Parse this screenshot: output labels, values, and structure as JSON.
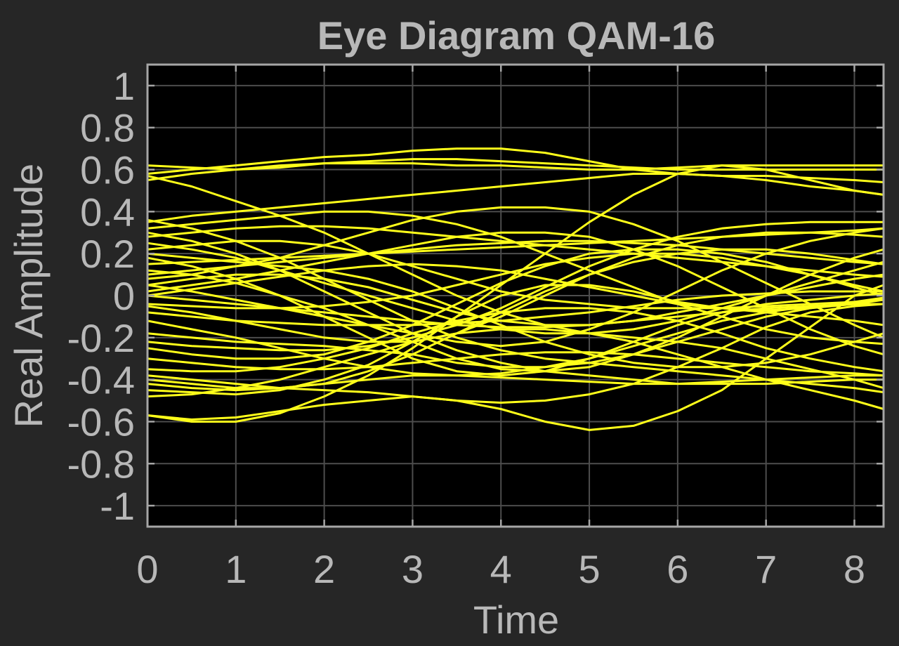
{
  "chart_data": {
    "type": "line",
    "title": "Eye Diagram QAM-16",
    "xlabel": "Time",
    "ylabel": "Real Amplitude",
    "xlim": [
      0,
      8.33
    ],
    "ylim": [
      -1.1,
      1.1
    ],
    "xticks": [
      0,
      1,
      2,
      3,
      4,
      5,
      6,
      7,
      8
    ],
    "xtick_labels": [
      "0",
      "1",
      "2",
      "3",
      "4",
      "5",
      "6",
      "7",
      "8"
    ],
    "yticks": [
      1,
      0.8,
      0.6,
      0.4,
      0.2,
      0,
      -0.2,
      -0.4,
      -0.6,
      -0.8,
      -1
    ],
    "ytick_labels": [
      "1",
      "0.8",
      "0.6",
      "0.4",
      "0.2",
      "0",
      "-0.2",
      "-0.4",
      "-0.6",
      "-0.8",
      "-1"
    ],
    "grid": true,
    "background": "#000000",
    "figure_background": "#262626",
    "trace_color": "#ffff1a",
    "text_color": "#b8b8b8",
    "x": [
      0,
      0.5,
      1,
      1.5,
      2,
      2.5,
      3,
      3.5,
      4,
      4.5,
      5,
      5.5,
      6,
      6.5,
      7,
      7.5,
      8,
      8.33
    ],
    "series": [
      {
        "values": [
          0.62,
          0.61,
          0.6,
          0.61,
          0.63,
          0.64,
          0.65,
          0.65,
          0.64,
          0.63,
          0.62,
          0.61,
          0.6,
          0.6,
          0.6,
          0.6,
          0.6,
          0.6
        ]
      },
      {
        "values": [
          0.58,
          0.6,
          0.62,
          0.64,
          0.66,
          0.67,
          0.69,
          0.7,
          0.7,
          0.68,
          0.64,
          0.6,
          0.58,
          0.57,
          0.57,
          0.56,
          0.55,
          0.54
        ]
      },
      {
        "values": [
          0.55,
          0.58,
          0.6,
          0.62,
          0.63,
          0.63,
          0.63,
          0.62,
          0.62,
          0.61,
          0.6,
          0.6,
          0.61,
          0.62,
          0.62,
          0.62,
          0.62,
          0.62
        ]
      },
      {
        "values": [
          0.57,
          0.52,
          0.45,
          0.38,
          0.3,
          0.2,
          0.1,
          0.0,
          -0.08,
          -0.14,
          -0.18,
          -0.2,
          -0.22,
          -0.25,
          -0.3,
          -0.35,
          -0.4,
          -0.44
        ]
      },
      {
        "values": [
          -0.57,
          -0.6,
          -0.6,
          -0.56,
          -0.48,
          -0.38,
          -0.25,
          -0.1,
          0.05,
          0.2,
          0.35,
          0.48,
          0.58,
          0.62,
          0.6,
          0.55,
          0.5,
          0.48
        ]
      },
      {
        "values": [
          -0.57,
          -0.59,
          -0.58,
          -0.55,
          -0.52,
          -0.5,
          -0.48,
          -0.5,
          -0.54,
          -0.6,
          -0.64,
          -0.62,
          -0.55,
          -0.45,
          -0.3,
          -0.15,
          0.0,
          0.05
        ]
      },
      {
        "values": [
          -0.45,
          -0.46,
          -0.47,
          -0.45,
          -0.4,
          -0.33,
          -0.22,
          -0.1,
          0.0,
          0.05,
          0.05,
          0.02,
          -0.03,
          -0.06,
          -0.08,
          -0.1,
          -0.12,
          -0.14
        ]
      },
      {
        "values": [
          -0.42,
          -0.44,
          -0.45,
          -0.44,
          -0.42,
          -0.4,
          -0.38,
          -0.38,
          -0.39,
          -0.4,
          -0.41,
          -0.42,
          -0.42,
          -0.41,
          -0.4,
          -0.39,
          -0.38,
          -0.38
        ]
      },
      {
        "values": [
          -0.38,
          -0.4,
          -0.42,
          -0.44,
          -0.45,
          -0.46,
          -0.48,
          -0.5,
          -0.51,
          -0.5,
          -0.47,
          -0.42,
          -0.34,
          -0.25,
          -0.15,
          -0.08,
          -0.05,
          -0.04
        ]
      },
      {
        "values": [
          -0.35,
          -0.36,
          -0.36,
          -0.34,
          -0.3,
          -0.25,
          -0.18,
          -0.12,
          -0.08,
          -0.06,
          -0.06,
          -0.08,
          -0.12,
          -0.18,
          -0.25,
          -0.3,
          -0.34,
          -0.36
        ]
      },
      {
        "values": [
          -0.3,
          -0.32,
          -0.34,
          -0.35,
          -0.35,
          -0.34,
          -0.32,
          -0.3,
          -0.28,
          -0.27,
          -0.27,
          -0.28,
          -0.3,
          -0.32,
          -0.34,
          -0.36,
          -0.37,
          -0.38
        ]
      },
      {
        "values": [
          -0.22,
          -0.24,
          -0.25,
          -0.26,
          -0.26,
          -0.24,
          -0.2,
          -0.14,
          -0.06,
          0.04,
          0.14,
          0.22,
          0.28,
          0.32,
          0.34,
          0.35,
          0.35,
          0.35
        ]
      },
      {
        "values": [
          -0.18,
          -0.2,
          -0.22,
          -0.23,
          -0.24,
          -0.26,
          -0.28,
          -0.32,
          -0.34,
          -0.34,
          -0.32,
          -0.28,
          -0.22,
          -0.16,
          -0.1,
          -0.06,
          -0.03,
          -0.01
        ]
      },
      {
        "values": [
          -0.12,
          -0.16,
          -0.2,
          -0.25,
          -0.3,
          -0.34,
          -0.37,
          -0.38,
          -0.37,
          -0.34,
          -0.3,
          -0.24,
          -0.18,
          -0.12,
          -0.08,
          -0.05,
          -0.04,
          -0.04
        ]
      },
      {
        "values": [
          -0.08,
          -0.1,
          -0.12,
          -0.13,
          -0.14,
          -0.14,
          -0.14,
          -0.13,
          -0.12,
          -0.1,
          -0.08,
          -0.05,
          -0.02,
          0.0,
          0.01,
          0.02,
          0.02,
          0.02
        ]
      },
      {
        "values": [
          -0.04,
          -0.05,
          -0.06,
          -0.06,
          -0.05,
          -0.03,
          0.0,
          0.05,
          0.1,
          0.15,
          0.18,
          0.2,
          0.2,
          0.18,
          0.14,
          0.1,
          0.05,
          0.02
        ]
      },
      {
        "values": [
          0.0,
          -0.02,
          -0.04,
          -0.06,
          -0.08,
          -0.1,
          -0.12,
          -0.14,
          -0.15,
          -0.15,
          -0.14,
          -0.12,
          -0.1,
          -0.08,
          -0.06,
          -0.05,
          -0.04,
          -0.04
        ]
      },
      {
        "values": [
          0.02,
          0.05,
          0.08,
          0.12,
          0.16,
          0.2,
          0.24,
          0.28,
          0.3,
          0.3,
          0.28,
          0.22,
          0.14,
          0.04,
          -0.06,
          -0.16,
          -0.24,
          -0.28
        ]
      },
      {
        "values": [
          0.05,
          0.08,
          0.1,
          0.1,
          0.08,
          0.04,
          -0.02,
          -0.08,
          -0.12,
          -0.14,
          -0.14,
          -0.12,
          -0.08,
          -0.04,
          0.0,
          0.04,
          0.08,
          0.1
        ]
      },
      {
        "values": [
          0.08,
          0.1,
          0.14,
          0.18,
          0.24,
          0.3,
          0.36,
          0.4,
          0.42,
          0.42,
          0.4,
          0.34,
          0.26,
          0.16,
          0.06,
          -0.04,
          -0.14,
          -0.2
        ]
      },
      {
        "values": [
          0.12,
          0.1,
          0.06,
          0.0,
          -0.06,
          -0.14,
          -0.22,
          -0.3,
          -0.35,
          -0.36,
          -0.34,
          -0.28,
          -0.2,
          -0.1,
          0.0,
          0.1,
          0.18,
          0.22
        ]
      },
      {
        "values": [
          0.15,
          0.16,
          0.17,
          0.18,
          0.19,
          0.2,
          0.21,
          0.22,
          0.23,
          0.24,
          0.25,
          0.26,
          0.27,
          0.28,
          0.29,
          0.3,
          0.31,
          0.32
        ]
      },
      {
        "values": [
          0.18,
          0.14,
          0.08,
          0.0,
          -0.1,
          -0.2,
          -0.3,
          -0.36,
          -0.38,
          -0.36,
          -0.3,
          -0.22,
          -0.14,
          -0.08,
          -0.04,
          -0.02,
          0.0,
          0.01
        ]
      },
      {
        "values": [
          0.22,
          0.24,
          0.26,
          0.26,
          0.24,
          0.2,
          0.14,
          0.08,
          0.02,
          -0.02,
          -0.04,
          -0.06,
          -0.06,
          -0.06,
          -0.05,
          -0.04,
          -0.03,
          -0.02
        ]
      },
      {
        "values": [
          0.25,
          0.22,
          0.18,
          0.12,
          0.06,
          0.0,
          -0.06,
          -0.12,
          -0.16,
          -0.18,
          -0.18,
          -0.16,
          -0.12,
          -0.06,
          0.0,
          0.06,
          0.12,
          0.16
        ]
      },
      {
        "values": [
          0.28,
          0.3,
          0.32,
          0.33,
          0.33,
          0.32,
          0.3,
          0.28,
          0.26,
          0.24,
          0.22,
          0.2,
          0.18,
          0.16,
          0.14,
          0.12,
          0.1,
          0.09
        ]
      },
      {
        "values": [
          0.3,
          0.26,
          0.2,
          0.12,
          0.02,
          -0.08,
          -0.18,
          -0.26,
          -0.32,
          -0.36,
          -0.38,
          -0.4,
          -0.42,
          -0.42,
          -0.42,
          -0.41,
          -0.4,
          -0.4
        ]
      },
      {
        "values": [
          0.32,
          0.34,
          0.36,
          0.38,
          0.4,
          0.4,
          0.38,
          0.34,
          0.28,
          0.2,
          0.12,
          0.04,
          -0.04,
          -0.1,
          -0.16,
          -0.2,
          -0.22,
          -0.23
        ]
      },
      {
        "values": [
          0.35,
          0.38,
          0.4,
          0.42,
          0.44,
          0.46,
          0.48,
          0.5,
          0.52,
          0.54,
          0.56,
          0.58,
          0.58,
          0.57,
          0.55,
          0.52,
          0.5,
          0.48
        ]
      },
      {
        "values": [
          0.36,
          0.32,
          0.26,
          0.18,
          0.08,
          -0.02,
          -0.12,
          -0.2,
          -0.26,
          -0.3,
          -0.32,
          -0.34,
          -0.36,
          -0.38,
          -0.4,
          -0.42,
          -0.44,
          -0.46
        ]
      },
      {
        "values": [
          0.05,
          0.02,
          -0.02,
          -0.06,
          -0.1,
          -0.14,
          -0.18,
          -0.22,
          -0.24,
          -0.22,
          -0.16,
          -0.08,
          0.02,
          0.12,
          0.2,
          0.26,
          0.3,
          0.32
        ]
      },
      {
        "values": [
          -0.25,
          -0.28,
          -0.3,
          -0.3,
          -0.28,
          -0.22,
          -0.14,
          -0.04,
          0.06,
          0.14,
          0.2,
          0.22,
          0.22,
          0.2,
          0.16,
          0.1,
          0.04,
          0.0
        ]
      },
      {
        "values": [
          -0.4,
          -0.42,
          -0.44,
          -0.44,
          -0.42,
          -0.36,
          -0.28,
          -0.18,
          -0.08,
          0.02,
          0.1,
          0.16,
          0.2,
          0.22,
          0.22,
          0.2,
          0.17,
          0.15
        ]
      },
      {
        "values": [
          0.1,
          0.12,
          0.14,
          0.16,
          0.18,
          0.2,
          0.22,
          0.24,
          0.25,
          0.26,
          0.26,
          0.25,
          0.24,
          0.22,
          0.2,
          0.18,
          0.16,
          0.15
        ]
      },
      {
        "values": [
          -0.05,
          -0.08,
          -0.12,
          -0.16,
          -0.2,
          -0.22,
          -0.22,
          -0.18,
          -0.1,
          0.0,
          0.1,
          0.18,
          0.24,
          0.28,
          0.3,
          0.3,
          0.29,
          0.28
        ]
      },
      {
        "values": [
          0.2,
          0.18,
          0.16,
          0.14,
          0.12,
          0.08,
          0.02,
          -0.06,
          -0.14,
          -0.22,
          -0.28,
          -0.32,
          -0.34,
          -0.34,
          -0.32,
          -0.28,
          -0.22,
          -0.18
        ]
      },
      {
        "values": [
          -0.48,
          -0.47,
          -0.44,
          -0.4,
          -0.34,
          -0.28,
          -0.22,
          -0.18,
          -0.16,
          -0.16,
          -0.18,
          -0.22,
          -0.28,
          -0.34,
          -0.4,
          -0.45,
          -0.5,
          -0.54
        ]
      },
      {
        "values": [
          0.0,
          0.03,
          0.06,
          0.09,
          0.12,
          0.14,
          0.15,
          0.14,
          0.12,
          0.08,
          0.04,
          0.0,
          -0.04,
          -0.06,
          -0.07,
          -0.06,
          -0.04,
          -0.02
        ]
      }
    ]
  }
}
